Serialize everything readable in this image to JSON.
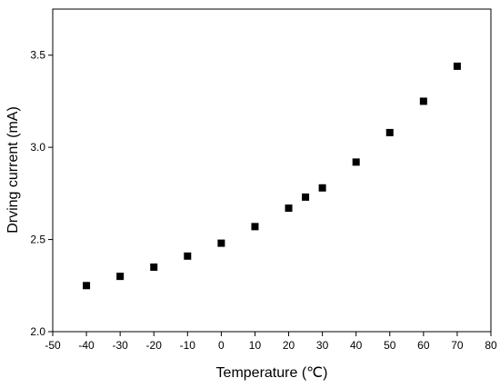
{
  "chart_data": {
    "type": "scatter",
    "xlabel": "Temperature (℃)",
    "ylabel": "Drving current (mA)",
    "xlim": [
      -50,
      80
    ],
    "ylim": [
      2.0,
      3.75
    ],
    "xticks": [
      -50,
      -40,
      -30,
      -20,
      -10,
      0,
      10,
      20,
      30,
      40,
      50,
      60,
      70,
      80
    ],
    "yticks": [
      2.0,
      2.5,
      3.0,
      3.5
    ],
    "grid": false,
    "marker_color": "#000000",
    "series": [
      {
        "x": [
          -40,
          -30,
          -20,
          -10,
          0,
          10,
          20,
          25,
          30,
          40,
          50,
          60,
          70
        ],
        "y": [
          2.25,
          2.3,
          2.35,
          2.41,
          2.48,
          2.57,
          2.67,
          2.73,
          2.78,
          2.92,
          3.08,
          3.25,
          3.44
        ]
      }
    ]
  }
}
